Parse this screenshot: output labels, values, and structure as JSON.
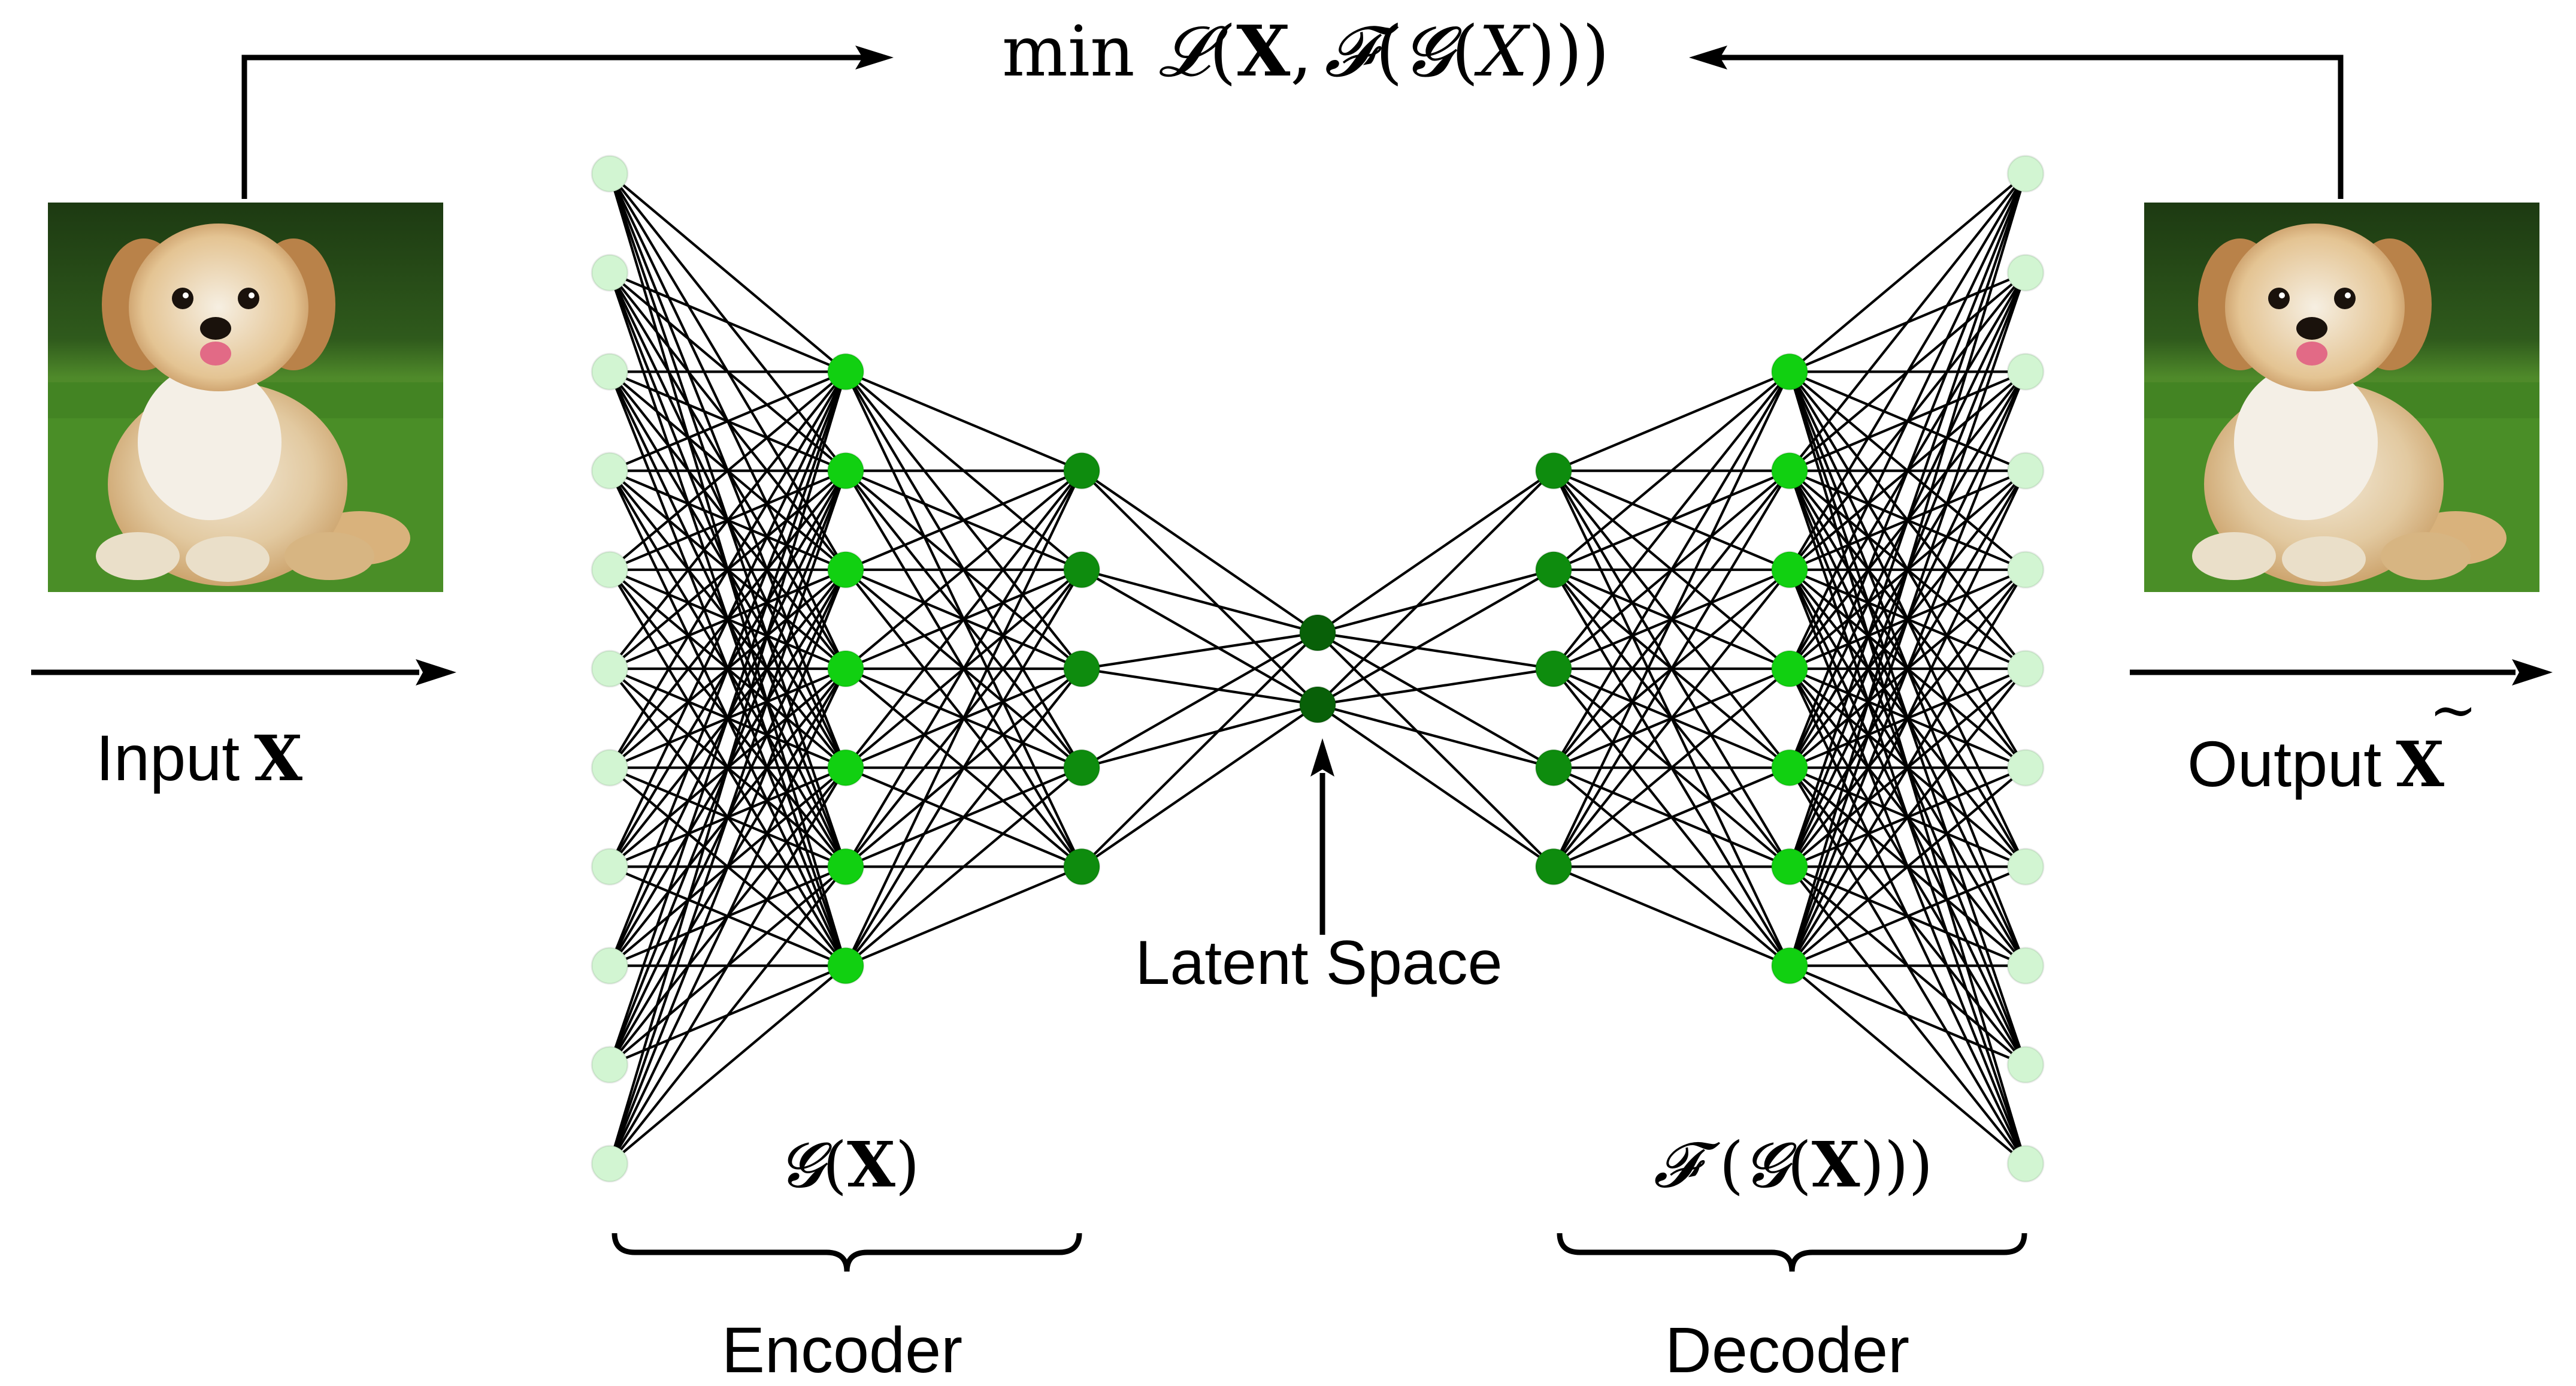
{
  "loss": {
    "min": "min",
    "L": "𝓛",
    "open": "(",
    "X": "X",
    "comma": ",",
    "F": "𝓕",
    "open2": "(",
    "G": "𝓖",
    "open3": "(",
    "Xit": "X",
    "close": ")))"
  },
  "input_label": {
    "word": "Input",
    "symbol": "X"
  },
  "output_label": {
    "word": "Output",
    "symbol": "X",
    "accent": "~"
  },
  "latent_label": "Latent Space",
  "encoder": {
    "label": "Encoder",
    "func": {
      "G": "𝓖",
      "open": "(",
      "X": "X",
      "close": ")"
    }
  },
  "decoder": {
    "label": "Decoder",
    "func": {
      "F": "𝓕",
      "open": " (",
      "G": "𝓖",
      "open2": "(",
      "X": "X",
      "close": ")))"
    }
  },
  "network": {
    "layer_sizes": [
      11,
      7,
      5,
      2,
      5,
      7,
      11
    ],
    "layer_colors": [
      "#d2f5d2",
      "#11d011",
      "#0e8c0e",
      "#086008",
      "#0e8c0e",
      "#11d011",
      "#d2f5d2"
    ]
  },
  "images": {
    "input": "puppy-photo",
    "output": "puppy-photo-reconstructed"
  }
}
